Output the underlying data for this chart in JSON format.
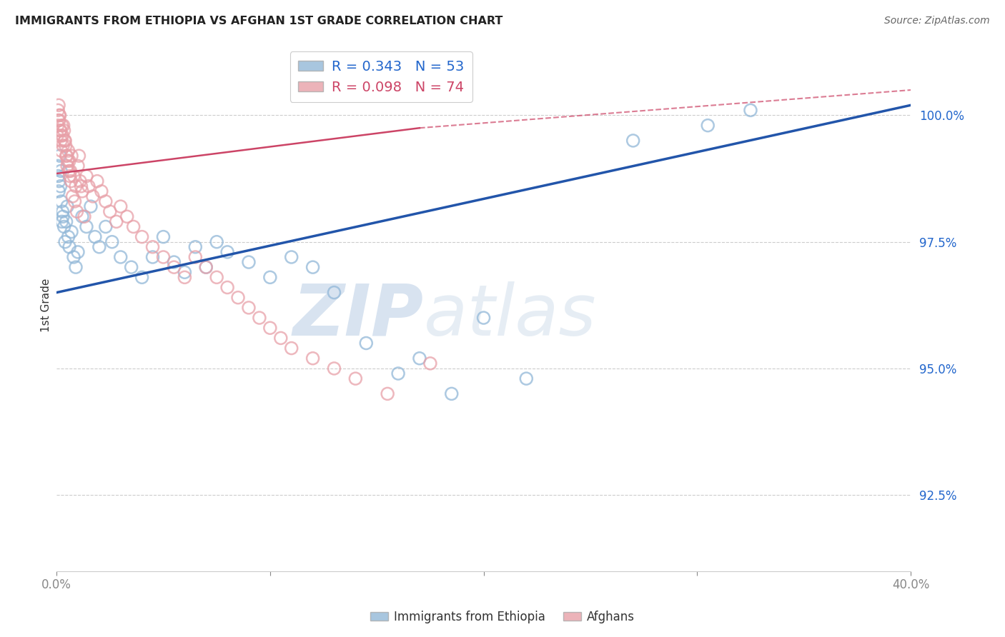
{
  "title": "IMMIGRANTS FROM ETHIOPIA VS AFGHAN 1ST GRADE CORRELATION CHART",
  "source": "Source: ZipAtlas.com",
  "ylabel": "1st Grade",
  "xlim": [
    0.0,
    40.0
  ],
  "ylim": [
    91.0,
    101.5
  ],
  "yticks": [
    92.5,
    95.0,
    97.5,
    100.0
  ],
  "ytick_labels": [
    "92.5%",
    "95.0%",
    "97.5%",
    "100.0%"
  ],
  "xticks": [
    0.0,
    10.0,
    20.0,
    30.0,
    40.0
  ],
  "xtick_labels": [
    "0.0%",
    "",
    "",
    "",
    "40.0%"
  ],
  "legend_blue_label": "R = 0.343   N = 53",
  "legend_pink_label": "R = 0.098   N = 74",
  "watermark_zip": "ZIP",
  "watermark_atlas": "atlas",
  "blue_color": "#92b8d8",
  "pink_color": "#e8a0a8",
  "line_blue_color": "#2255aa",
  "line_pink_color": "#cc4466",
  "blue_line_y0": 96.5,
  "blue_line_y1": 100.2,
  "pink_line_y0": 98.85,
  "pink_line_y1": 99.75,
  "pink_line_x1": 17.0,
  "pink_line_dashed_y0": 98.85,
  "pink_line_dashed_y1": 100.5,
  "ethiopia_x": [
    0.05,
    0.08,
    0.1,
    0.12,
    0.15,
    0.18,
    0.2,
    0.22,
    0.25,
    0.28,
    0.3,
    0.35,
    0.4,
    0.45,
    0.5,
    0.55,
    0.6,
    0.7,
    0.8,
    0.9,
    1.0,
    1.2,
    1.4,
    1.6,
    1.8,
    2.0,
    2.3,
    2.6,
    3.0,
    3.5,
    4.0,
    4.5,
    5.0,
    5.5,
    6.0,
    6.5,
    7.0,
    7.5,
    8.0,
    9.0,
    10.0,
    11.0,
    12.0,
    13.0,
    14.5,
    16.0,
    17.0,
    18.5,
    20.0,
    22.0,
    27.0,
    30.5,
    32.5
  ],
  "ethiopia_y": [
    99.0,
    98.8,
    98.5,
    98.7,
    99.2,
    98.6,
    98.9,
    98.3,
    97.9,
    98.1,
    98.0,
    97.8,
    97.5,
    97.9,
    98.2,
    97.6,
    97.4,
    97.7,
    97.2,
    97.0,
    97.3,
    98.0,
    97.8,
    98.2,
    97.6,
    97.4,
    97.8,
    97.5,
    97.2,
    97.0,
    96.8,
    97.2,
    97.6,
    97.1,
    96.9,
    97.4,
    97.0,
    97.5,
    97.3,
    97.1,
    96.8,
    97.2,
    97.0,
    96.5,
    95.5,
    94.9,
    95.2,
    94.5,
    96.0,
    94.8,
    99.5,
    99.8,
    100.1
  ],
  "afghan_x": [
    0.03,
    0.05,
    0.07,
    0.1,
    0.12,
    0.15,
    0.18,
    0.2,
    0.22,
    0.25,
    0.28,
    0.3,
    0.35,
    0.4,
    0.45,
    0.5,
    0.55,
    0.6,
    0.65,
    0.7,
    0.8,
    0.9,
    1.0,
    1.1,
    1.2,
    1.4,
    1.5,
    1.7,
    1.9,
    2.1,
    2.3,
    2.5,
    2.8,
    3.0,
    3.3,
    3.6,
    4.0,
    4.5,
    5.0,
    5.5,
    6.0,
    6.5,
    7.0,
    7.5,
    8.0,
    8.5,
    9.0,
    9.5,
    10.0,
    10.5,
    11.0,
    12.0,
    13.0,
    14.0,
    15.5,
    17.5,
    0.08,
    0.13,
    0.17,
    0.23,
    0.32,
    0.38,
    0.42,
    0.48,
    0.52,
    0.58,
    0.62,
    0.68,
    0.75,
    0.85,
    0.95,
    1.05,
    1.15,
    1.3
  ],
  "afghan_y": [
    99.6,
    99.8,
    100.1,
    100.2,
    99.9,
    100.0,
    99.7,
    99.5,
    99.3,
    99.8,
    99.6,
    99.4,
    99.7,
    99.5,
    99.2,
    99.0,
    99.3,
    99.1,
    98.9,
    99.2,
    98.8,
    98.6,
    99.0,
    98.7,
    98.5,
    98.8,
    98.6,
    98.4,
    98.7,
    98.5,
    98.3,
    98.1,
    97.9,
    98.2,
    98.0,
    97.8,
    97.6,
    97.4,
    97.2,
    97.0,
    96.8,
    97.2,
    97.0,
    96.8,
    96.6,
    96.4,
    96.2,
    96.0,
    95.8,
    95.6,
    95.4,
    95.2,
    95.0,
    94.8,
    94.5,
    95.1,
    99.9,
    100.0,
    99.7,
    99.6,
    99.8,
    99.5,
    99.4,
    99.2,
    99.1,
    98.9,
    98.8,
    98.7,
    98.4,
    98.3,
    98.1,
    99.2,
    98.6,
    98.0
  ]
}
